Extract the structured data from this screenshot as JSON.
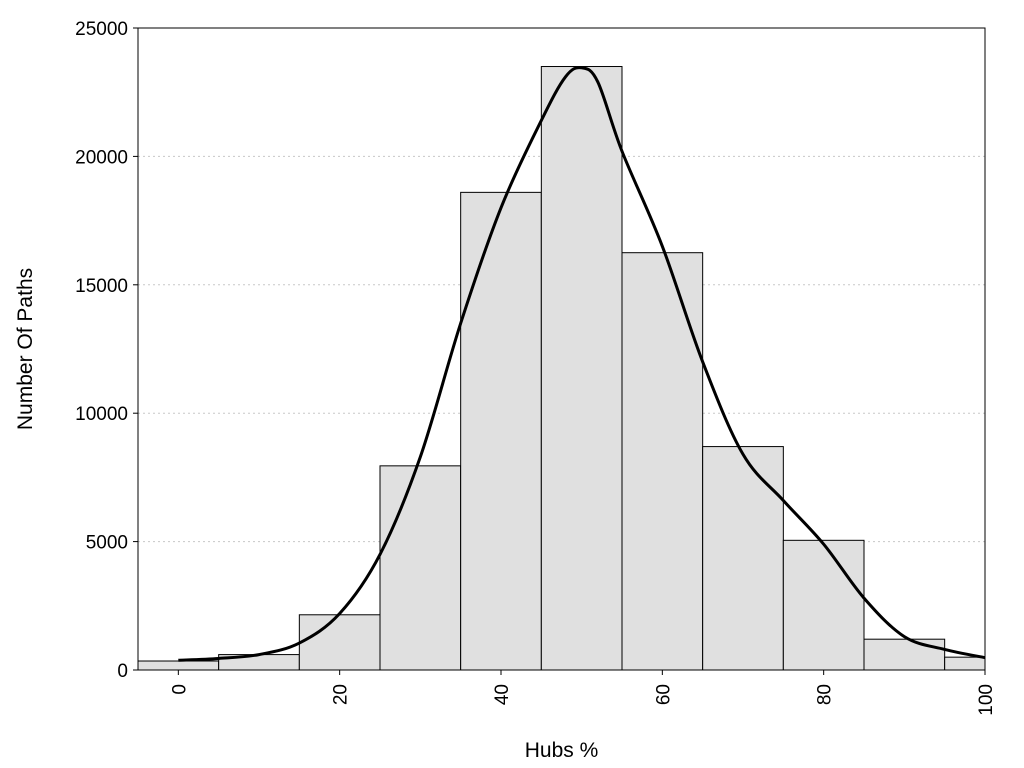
{
  "chart_data": {
    "type": "bar",
    "title": "",
    "xlabel": "Hubs %",
    "ylabel": "Number Of Paths",
    "xlim": [
      -5,
      100
    ],
    "ylim": [
      0,
      25000
    ],
    "x_ticks": [
      0,
      20,
      40,
      60,
      80,
      100
    ],
    "y_ticks": [
      0,
      5000,
      10000,
      15000,
      20000,
      25000
    ],
    "grid": "horizontal dotted",
    "bin_width": 10,
    "bins": [
      {
        "center": 0,
        "value": 350
      },
      {
        "center": 10,
        "value": 600
      },
      {
        "center": 20,
        "value": 2150
      },
      {
        "center": 30,
        "value": 7950
      },
      {
        "center": 40,
        "value": 18600
      },
      {
        "center": 50,
        "value": 23500
      },
      {
        "center": 60,
        "value": 16250
      },
      {
        "center": 70,
        "value": 8700
      },
      {
        "center": 80,
        "value": 5050
      },
      {
        "center": 90,
        "value": 1200
      },
      {
        "center": 100,
        "value": 500
      }
    ],
    "density_curve": [
      {
        "x": 0,
        "y": 380
      },
      {
        "x": 5,
        "y": 450
      },
      {
        "x": 10,
        "y": 600
      },
      {
        "x": 15,
        "y": 1050
      },
      {
        "x": 20,
        "y": 2200
      },
      {
        "x": 25,
        "y": 4500
      },
      {
        "x": 30,
        "y": 8300
      },
      {
        "x": 35,
        "y": 13500
      },
      {
        "x": 40,
        "y": 18000
      },
      {
        "x": 45,
        "y": 21400
      },
      {
        "x": 48,
        "y": 23100
      },
      {
        "x": 50,
        "y": 23450
      },
      {
        "x": 52,
        "y": 22900
      },
      {
        "x": 55,
        "y": 20200
      },
      {
        "x": 60,
        "y": 16500
      },
      {
        "x": 65,
        "y": 12000
      },
      {
        "x": 70,
        "y": 8400
      },
      {
        "x": 75,
        "y": 6600
      },
      {
        "x": 80,
        "y": 4900
      },
      {
        "x": 85,
        "y": 2800
      },
      {
        "x": 90,
        "y": 1300
      },
      {
        "x": 95,
        "y": 800
      },
      {
        "x": 100,
        "y": 480
      }
    ],
    "colors": {
      "bar_fill": "#e0e0e0",
      "bar_stroke": "#000000",
      "curve": "#000000",
      "grid": "#c8c8c8"
    }
  }
}
